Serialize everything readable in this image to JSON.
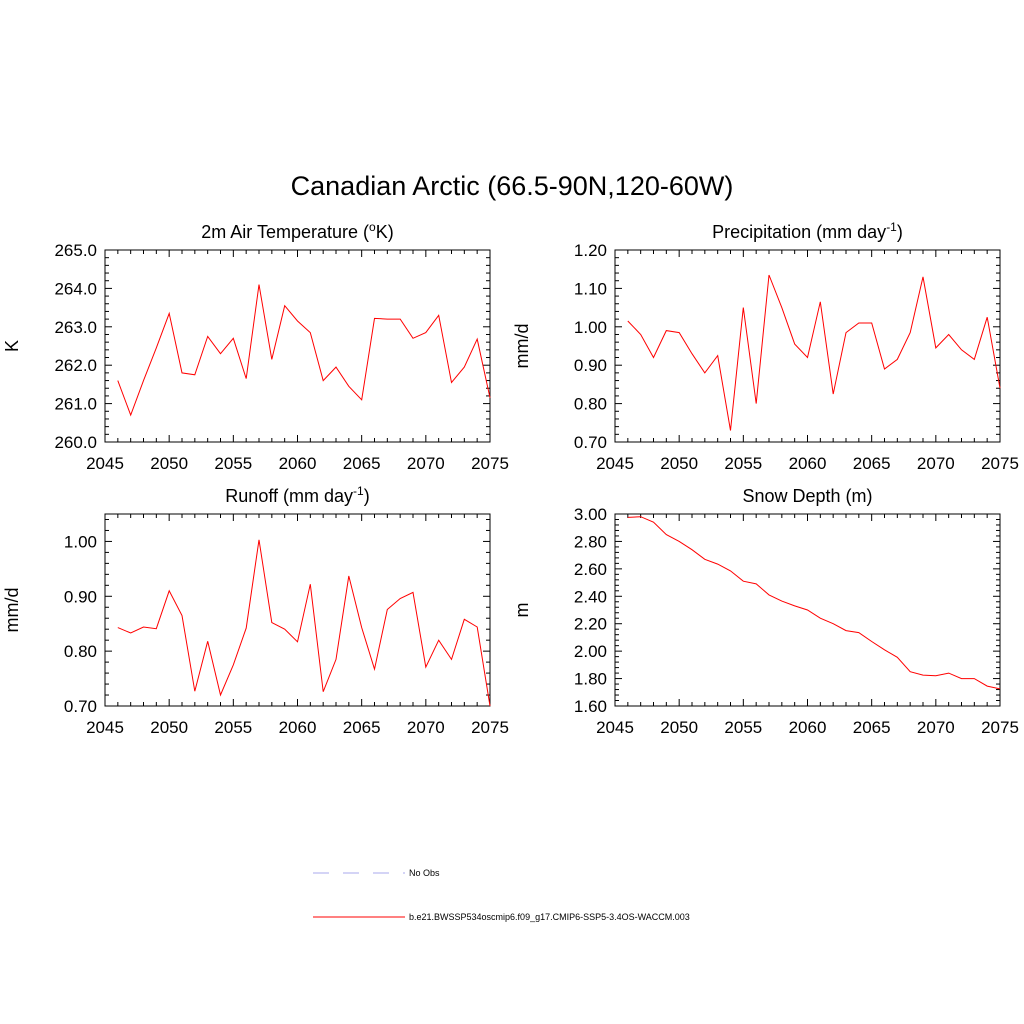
{
  "figure": {
    "title": "Canadian Arctic (66.5-90N,120-60W)"
  },
  "chart_data": [
    {
      "type": "line",
      "title": "2m Air Temperature",
      "title_super": "o",
      "title_units": "K",
      "ylabel": "K",
      "xlabel": "",
      "xlim": [
        2045,
        2075
      ],
      "ylim": [
        260.0,
        265.0
      ],
      "xticks": [
        "2045",
        "2050",
        "2055",
        "2060",
        "2065",
        "2070",
        "2075"
      ],
      "yticks": [
        "260.0",
        "261.0",
        "262.0",
        "263.0",
        "264.0",
        "265.0"
      ],
      "x": [
        2046,
        2047,
        2048,
        2049,
        2050,
        2051,
        2052,
        2053,
        2054,
        2055,
        2056,
        2057,
        2058,
        2059,
        2060,
        2061,
        2062,
        2063,
        2064,
        2065,
        2066,
        2067,
        2068,
        2069,
        2070,
        2071,
        2072,
        2073,
        2074,
        2075
      ],
      "series": [
        {
          "name": "b.e21.BWSSP534oscmip6.f09_g17.CMIP6-SSP5-3.4OS-WACCM.003",
          "values": [
            261.6,
            260.7,
            261.6,
            262.45,
            263.35,
            261.8,
            261.75,
            262.75,
            262.3,
            262.7,
            261.65,
            264.1,
            262.15,
            263.55,
            263.15,
            262.85,
            261.6,
            261.95,
            261.45,
            261.1,
            263.22,
            263.2,
            263.2,
            262.7,
            262.85,
            263.3,
            261.55,
            261.95,
            262.68,
            261.15
          ],
          "color": "#ff0000"
        }
      ]
    },
    {
      "type": "line",
      "title": "Precipitation (mm day",
      "title_super": "-1",
      "title_suffix": ")",
      "ylabel": "mm/d",
      "xlabel": "",
      "xlim": [
        2045,
        2075
      ],
      "ylim": [
        0.7,
        1.2
      ],
      "xticks": [
        "2045",
        "2050",
        "2055",
        "2060",
        "2065",
        "2070",
        "2075"
      ],
      "yticks": [
        "0.70",
        "0.80",
        "0.90",
        "1.00",
        "1.10",
        "1.20"
      ],
      "x": [
        2046,
        2047,
        2048,
        2049,
        2050,
        2051,
        2052,
        2053,
        2054,
        2055,
        2056,
        2057,
        2058,
        2059,
        2060,
        2061,
        2062,
        2063,
        2064,
        2065,
        2066,
        2067,
        2068,
        2069,
        2070,
        2071,
        2072,
        2073,
        2074,
        2075
      ],
      "series": [
        {
          "name": "b.e21.BWSSP534oscmip6.f09_g17.CMIP6-SSP5-3.4OS-WACCM.003",
          "values": [
            1.015,
            0.98,
            0.92,
            0.99,
            0.985,
            0.93,
            0.88,
            0.925,
            0.73,
            1.05,
            0.8,
            1.135,
            1.05,
            0.955,
            0.92,
            1.065,
            0.825,
            0.985,
            1.01,
            1.01,
            0.89,
            0.915,
            0.985,
            1.13,
            0.945,
            0.98,
            0.94,
            0.915,
            1.025,
            0.84
          ],
          "color": "#ff0000"
        }
      ]
    },
    {
      "type": "line",
      "title": "Runoff (mm day",
      "title_super": "-1",
      "title_suffix": ")",
      "ylabel": "mm/d",
      "xlabel": "",
      "xlim": [
        2045,
        2075
      ],
      "ylim": [
        0.7,
        1.05
      ],
      "xticks": [
        "2045",
        "2050",
        "2055",
        "2060",
        "2065",
        "2070",
        "2075"
      ],
      "yticks": [
        "0.70",
        "0.80",
        "0.90",
        "1.00"
      ],
      "x": [
        2046,
        2047,
        2048,
        2049,
        2050,
        2051,
        2052,
        2053,
        2054,
        2055,
        2056,
        2057,
        2058,
        2059,
        2060,
        2061,
        2062,
        2063,
        2064,
        2065,
        2066,
        2067,
        2068,
        2069,
        2070,
        2071,
        2072,
        2073,
        2074,
        2075
      ],
      "series": [
        {
          "name": "b.e21.BWSSP534oscmip6.f09_g17.CMIP6-SSP5-3.4OS-WACCM.003",
          "values": [
            0.843,
            0.833,
            0.844,
            0.841,
            0.91,
            0.865,
            0.727,
            0.818,
            0.72,
            0.775,
            0.842,
            1.003,
            0.852,
            0.84,
            0.817,
            0.922,
            0.726,
            0.785,
            0.937,
            0.843,
            0.767,
            0.876,
            0.896,
            0.907,
            0.771,
            0.82,
            0.785,
            0.858,
            0.844,
            0.7
          ],
          "color": "#ff0000"
        }
      ]
    },
    {
      "type": "line",
      "title": "Snow Depth (m)",
      "ylabel": "m",
      "xlabel": "",
      "xlim": [
        2045,
        2075
      ],
      "ylim": [
        1.6,
        3.0
      ],
      "xticks": [
        "2045",
        "2050",
        "2055",
        "2060",
        "2065",
        "2070",
        "2075"
      ],
      "yticks": [
        "1.60",
        "1.80",
        "2.00",
        "2.20",
        "2.40",
        "2.60",
        "2.80",
        "3.00"
      ],
      "x": [
        2046,
        2047,
        2048,
        2049,
        2050,
        2051,
        2052,
        2053,
        2054,
        2055,
        2056,
        2057,
        2058,
        2059,
        2060,
        2061,
        2062,
        2063,
        2064,
        2065,
        2066,
        2067,
        2068,
        2069,
        2070,
        2071,
        2072,
        2073,
        2074,
        2075
      ],
      "series": [
        {
          "name": "b.e21.BWSSP534oscmip6.f09_g17.CMIP6-SSP5-3.4OS-WACCM.003",
          "values": [
            2.975,
            2.98,
            2.94,
            2.85,
            2.8,
            2.74,
            2.67,
            2.635,
            2.585,
            2.51,
            2.49,
            2.41,
            2.365,
            2.33,
            2.3,
            2.24,
            2.2,
            2.15,
            2.135,
            2.07,
            2.01,
            1.955,
            1.85,
            1.825,
            1.82,
            1.84,
            1.8,
            1.8,
            1.745,
            1.725
          ],
          "color": "#ff0000"
        }
      ]
    }
  ],
  "legend": [
    {
      "label": "No Obs",
      "color": "#aaaaee",
      "dash": "dashed"
    },
    {
      "label": "b.e21.BWSSP534oscmip6.f09_g17.CMIP6-SSP5-3.4OS-WACCM.003",
      "color": "#ff0000",
      "dash": "solid"
    }
  ]
}
